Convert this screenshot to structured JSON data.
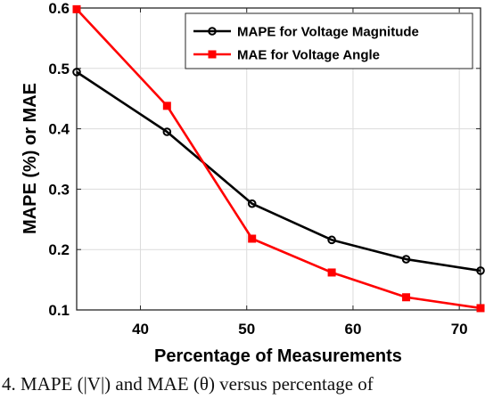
{
  "chart_data": {
    "type": "line",
    "xlabel": "Percentage of Measurements",
    "ylabel": "MAPE (%) or MAE",
    "xlim": [
      34,
      72
    ],
    "ylim": [
      0.1,
      0.6
    ],
    "x_ticks": [
      40,
      50,
      60,
      70
    ],
    "y_ticks": [
      0.1,
      0.2,
      0.3,
      0.4,
      0.5,
      0.6
    ],
    "grid": true,
    "legend_position": "top-right",
    "series": [
      {
        "name": "MAPE for Voltage Magnitude",
        "color": "#000000",
        "marker": "circle",
        "x": [
          34,
          42.5,
          50.5,
          58,
          65,
          72
        ],
        "y": [
          0.494,
          0.395,
          0.276,
          0.216,
          0.184,
          0.165
        ]
      },
      {
        "name": "MAE for Voltage Angle",
        "color": "#ff0000",
        "marker": "square",
        "x": [
          34,
          42.5,
          50.5,
          58,
          65,
          72
        ],
        "y": [
          0.598,
          0.438,
          0.218,
          0.162,
          0.121,
          0.103
        ]
      }
    ]
  },
  "caption": "4. MAPE (|V|) and MAE (θ) versus percentage of"
}
